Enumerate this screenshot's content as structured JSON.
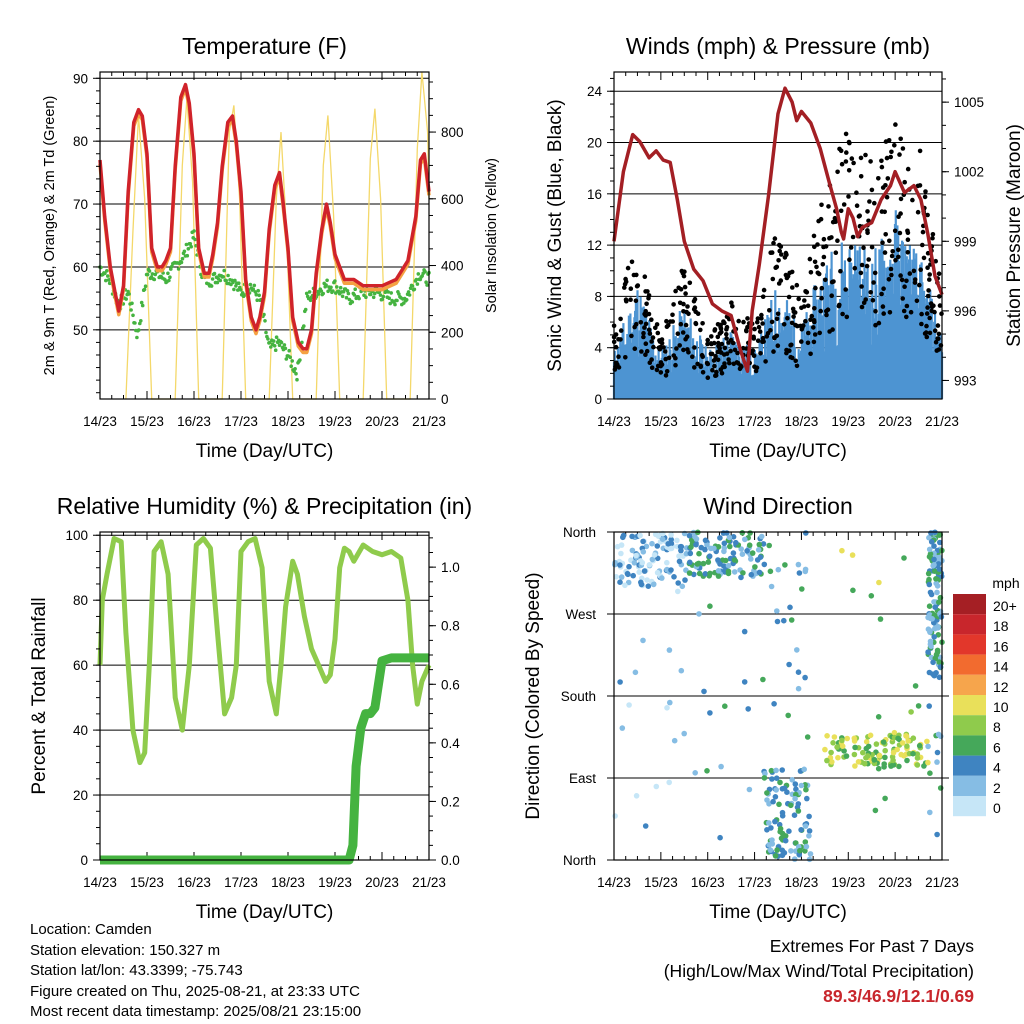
{
  "info": {
    "location": "Location: Camden",
    "elevation": "Station elevation: 150.327 m",
    "latlon": "Station lat/lon: 43.3399; -75.743",
    "created": "Figure created on Thu, 2025-08-21, at 23:33 UTC",
    "recent": "Most recent data timestamp: 2025/08/21 23:15:00"
  },
  "extremes": {
    "title": "Extremes For Past 7 Days",
    "subtitle": "(High/Low/Max Wind/Total Precipitation)",
    "values": "89.3/46.9/12.1/0.69"
  },
  "chart_data": [
    {
      "type": "line",
      "title": "Temperature (F)",
      "xlabel": "Time (Day/UTC)",
      "ylabel": "2m & 9m T (Red, Orange) & 2m Td (Green)",
      "y2label": "Solar Insolation (Yellow)",
      "x_ticks": [
        "14/23",
        "15/23",
        "16/23",
        "17/23",
        "18/23",
        "19/23",
        "20/23",
        "21/23"
      ],
      "xlim": [
        0,
        7
      ],
      "ylim": [
        39,
        91
      ],
      "y_ticks": [
        50,
        60,
        70,
        80,
        90
      ],
      "y2lim": [
        0,
        980
      ],
      "y2_ticks": [
        0,
        200,
        400,
        600,
        800
      ],
      "grid": true,
      "colors": {
        "t2m": "#d0232a",
        "t9m": "#f5a142",
        "td": "#45b340",
        "solar": "#f4d86a"
      },
      "series": [
        {
          "name": "2m T",
          "x": [
            0,
            0.1,
            0.22,
            0.32,
            0.4,
            0.5,
            0.6,
            0.72,
            0.82,
            0.9,
            1.0,
            1.1,
            1.22,
            1.32,
            1.4,
            1.5,
            1.6,
            1.72,
            1.82,
            1.9,
            2.0,
            2.1,
            2.22,
            2.32,
            2.4,
            2.5,
            2.6,
            2.72,
            2.82,
            2.9,
            3.0,
            3.1,
            3.22,
            3.32,
            3.4,
            3.5,
            3.6,
            3.72,
            3.82,
            3.9,
            4.0,
            4.1,
            4.22,
            4.32,
            4.4,
            4.5,
            4.6,
            4.72,
            4.82,
            4.9,
            5.0,
            5.2,
            5.4,
            5.6,
            5.8,
            6.0,
            6.3,
            6.55,
            6.72,
            6.82,
            6.9,
            7.0
          ],
          "y": [
            77,
            68,
            60,
            56,
            53,
            57,
            72,
            83,
            85,
            84,
            78,
            63,
            60,
            60,
            61,
            63,
            76,
            87,
            89,
            86,
            78,
            63,
            59,
            59,
            62,
            67,
            76,
            83,
            84,
            80,
            72,
            58,
            52,
            50,
            52,
            56,
            66,
            73,
            75,
            70,
            63,
            52,
            48,
            47,
            47,
            50,
            59,
            66,
            70,
            67,
            62,
            58,
            58,
            57,
            57,
            57,
            58,
            61,
            68,
            77,
            78,
            72
          ]
        },
        {
          "name": "2m Td",
          "x": [
            0,
            0.2,
            0.4,
            0.5,
            0.6,
            0.8,
            1.0,
            1.2,
            1.4,
            1.6,
            1.8,
            2.0,
            2.2,
            2.4,
            2.6,
            2.8,
            3.0,
            3.2,
            3.4,
            3.6,
            3.8,
            4.0,
            4.2,
            4.4,
            4.6,
            4.8,
            5.0,
            5.3,
            5.6,
            5.9,
            6.2,
            6.5,
            6.8,
            7.0
          ],
          "y": [
            60,
            58,
            54,
            55,
            56,
            49,
            59,
            59,
            58,
            60,
            62,
            65,
            58,
            58,
            59,
            58,
            56,
            57,
            55,
            47,
            48,
            46,
            43,
            55,
            56,
            57,
            57,
            55,
            56,
            56,
            55,
            55,
            59,
            58
          ]
        },
        {
          "name": "Solar Insolation",
          "x": [
            0.55,
            0.7,
            0.82,
            0.95,
            1.1,
            1.6,
            1.75,
            1.85,
            1.97,
            2.1,
            2.6,
            2.75,
            2.85,
            2.97,
            3.1,
            3.6,
            3.75,
            3.85,
            3.97,
            4.1,
            4.6,
            4.75,
            4.85,
            4.97,
            5.1,
            5.6,
            5.75,
            5.85,
            5.97,
            6.1,
            6.6,
            6.75,
            6.85,
            6.97,
            7.0
          ],
          "y": [
            0,
            500,
            850,
            600,
            0,
            0,
            700,
            900,
            650,
            0,
            0,
            800,
            880,
            600,
            0,
            0,
            600,
            800,
            500,
            0,
            0,
            700,
            850,
            550,
            0,
            0,
            720,
            870,
            600,
            0,
            0,
            750,
            980,
            800,
            600
          ]
        }
      ]
    },
    {
      "type": "scatter",
      "title": "Winds (mph) & Pressure (mb)",
      "xlabel": "Time (Day/UTC)",
      "ylabel": "Sonic Wind & Gust (Blue, Black)",
      "y2label": "Station Pressure (Maroon)",
      "x_ticks": [
        "14/23",
        "15/23",
        "16/23",
        "17/23",
        "18/23",
        "19/23",
        "20/23",
        "21/23"
      ],
      "xlim": [
        0,
        7
      ],
      "ylim": [
        0,
        25.5
      ],
      "y_ticks": [
        0,
        4,
        8,
        12,
        16,
        20,
        24
      ],
      "y2lim": [
        992.2,
        1006.3
      ],
      "y2_ticks": [
        993,
        996,
        999,
        1002,
        1005
      ],
      "grid": true,
      "colors": {
        "wind": "#4d94d2",
        "gust": "#000000",
        "pressure": "#a31f24"
      },
      "series": [
        {
          "name": "Station Pressure",
          "x": [
            0,
            0.2,
            0.4,
            0.55,
            0.75,
            0.9,
            1.05,
            1.2,
            1.35,
            1.5,
            1.7,
            1.9,
            2.1,
            2.3,
            2.5,
            2.7,
            2.85,
            2.95,
            3.1,
            3.3,
            3.5,
            3.65,
            3.8,
            3.9,
            4.0,
            4.2,
            4.4,
            4.6,
            4.75,
            4.85,
            4.9,
            5.0,
            5.1,
            5.2,
            5.3,
            5.5,
            5.7,
            5.9,
            6.0,
            6.2,
            6.4,
            6.55,
            6.7,
            6.85,
            7.0
          ],
          "y": [
            999,
            1002,
            1003.6,
            1003.3,
            1002.6,
            1002.9,
            1002.5,
            1002.4,
            1000.8,
            999,
            997.8,
            997.3,
            996.3,
            996.0,
            995.8,
            994.3,
            993.4,
            996,
            998,
            1001,
            1004.5,
            1005.6,
            1005,
            1004.2,
            1004.6,
            1004.1,
            1003,
            1001.5,
            1000.4,
            999.4,
            999.1,
            1000.4,
            1000,
            999.2,
            999.6,
            999.8,
            1000.8,
            1001.4,
            1002,
            1001.1,
            1001.4,
            1000.8,
            999.3,
            997.5,
            996.7
          ]
        },
        {
          "name": "Sonic Wind",
          "x": [
            0,
            0.5,
            1.0,
            1.5,
            2.0,
            2.5,
            3.0,
            3.5,
            4.0,
            4.5,
            5.0,
            5.5,
            6.0,
            6.5,
            7.0
          ],
          "y": [
            2,
            5,
            2,
            4,
            2,
            3,
            2,
            5,
            3,
            6,
            7,
            6,
            8,
            6,
            3
          ]
        },
        {
          "name": "Gust",
          "x": [
            0,
            0.5,
            1.0,
            1.5,
            2.0,
            2.5,
            3.0,
            3.5,
            4.0,
            4.5,
            5.0,
            5.5,
            6.0,
            6.5,
            7.0
          ],
          "y": [
            4,
            9,
            3,
            7,
            3,
            5,
            4,
            9,
            5,
            11,
            14,
            12,
            14,
            13,
            6
          ]
        }
      ]
    },
    {
      "type": "line",
      "title": "Relative Humidity (%) & Precipitation (in)",
      "xlabel": "Time (Day/UTC)",
      "ylabel": "Percent & Total Rainfall",
      "x_ticks": [
        "14/23",
        "15/23",
        "16/23",
        "17/23",
        "18/23",
        "19/23",
        "20/23",
        "21/23"
      ],
      "xlim": [
        0,
        7
      ],
      "ylim": [
        0,
        101
      ],
      "y_ticks": [
        0,
        20,
        40,
        60,
        80,
        100
      ],
      "y2lim": [
        0,
        1.12
      ],
      "y2_ticks": [
        0.0,
        0.2,
        0.4,
        0.6,
        0.8,
        1.0
      ],
      "grid": true,
      "colors": {
        "rh": "#8fcb4c",
        "precip": "#45b340"
      },
      "series": [
        {
          "name": "Relative Humidity",
          "x": [
            0,
            0.05,
            0.15,
            0.3,
            0.45,
            0.55,
            0.7,
            0.85,
            0.95,
            1.05,
            1.15,
            1.3,
            1.45,
            1.6,
            1.75,
            1.9,
            2.05,
            2.2,
            2.35,
            2.5,
            2.65,
            2.8,
            2.9,
            3.0,
            3.15,
            3.3,
            3.45,
            3.6,
            3.75,
            3.85,
            3.95,
            4.1,
            4.2,
            4.35,
            4.5,
            4.65,
            4.8,
            4.9,
            5.0,
            5.1,
            5.2,
            5.3,
            5.4,
            5.6,
            5.8,
            6.0,
            6.2,
            6.4,
            6.55,
            6.65,
            6.75,
            6.85,
            7.0
          ],
          "y": [
            60,
            80,
            88,
            99,
            98,
            70,
            40,
            30,
            33,
            60,
            95,
            98,
            88,
            50,
            40,
            60,
            97,
            99,
            96,
            70,
            45,
            50,
            60,
            95,
            98,
            99,
            90,
            55,
            45,
            60,
            78,
            92,
            88,
            75,
            65,
            60,
            55,
            57,
            68,
            90,
            96,
            95,
            92,
            97,
            95,
            94,
            95,
            93,
            80,
            60,
            48,
            55,
            60
          ]
        },
        {
          "name": "Total Precipitation",
          "x": [
            0,
            5.3,
            5.38,
            5.45,
            5.55,
            5.65,
            5.75,
            5.85,
            6.0,
            6.2,
            6.5,
            6.8,
            7.0
          ],
          "y": [
            0,
            0,
            0.05,
            0.32,
            0.45,
            0.5,
            0.5,
            0.52,
            0.68,
            0.69,
            0.69,
            0.69,
            0.69
          ]
        }
      ]
    },
    {
      "type": "scatter",
      "title": "Wind Direction",
      "xlabel": "Time (Day/UTC)",
      "ylabel": "Direction (Colored By Speed)",
      "x_ticks": [
        "14/23",
        "15/23",
        "16/23",
        "17/23",
        "18/23",
        "19/23",
        "20/23",
        "21/23"
      ],
      "xlim": [
        0,
        7
      ],
      "y_ticks": [
        "North",
        "West",
        "South",
        "East",
        "North"
      ],
      "y_tick_values": [
        360,
        270,
        180,
        90,
        0
      ],
      "ylim": [
        0,
        360
      ],
      "grid": true,
      "legend": {
        "position": "right",
        "unit": "mph",
        "labels": [
          "20+",
          "18",
          "16",
          "14",
          "12",
          "10",
          "8",
          "6",
          "4",
          "2",
          "0"
        ],
        "colors": [
          "#a51f24",
          "#c8262c",
          "#e2372b",
          "#f26b2f",
          "#f6a54c",
          "#e9e05a",
          "#8fcb4c",
          "#45a85a",
          "#3f84c1",
          "#86bde4",
          "#c6e6f7"
        ]
      },
      "clusters": [
        {
          "x_range": [
            0,
            1.6
          ],
          "dir_range": [
            300,
            360
          ],
          "speed": 2
        },
        {
          "x_range": [
            1.6,
            3.2
          ],
          "dir_range": [
            310,
            360
          ],
          "speed": 4
        },
        {
          "x_range": [
            3.2,
            4.2
          ],
          "dir_range": [
            0,
            100
          ],
          "speed": 4
        },
        {
          "x_range": [
            4.5,
            6.7
          ],
          "dir_range": [
            100,
            140
          ],
          "speed": 8
        },
        {
          "x_range": [
            6.7,
            7.0
          ],
          "dir_range": [
            200,
            360
          ],
          "speed": 4
        }
      ]
    }
  ]
}
